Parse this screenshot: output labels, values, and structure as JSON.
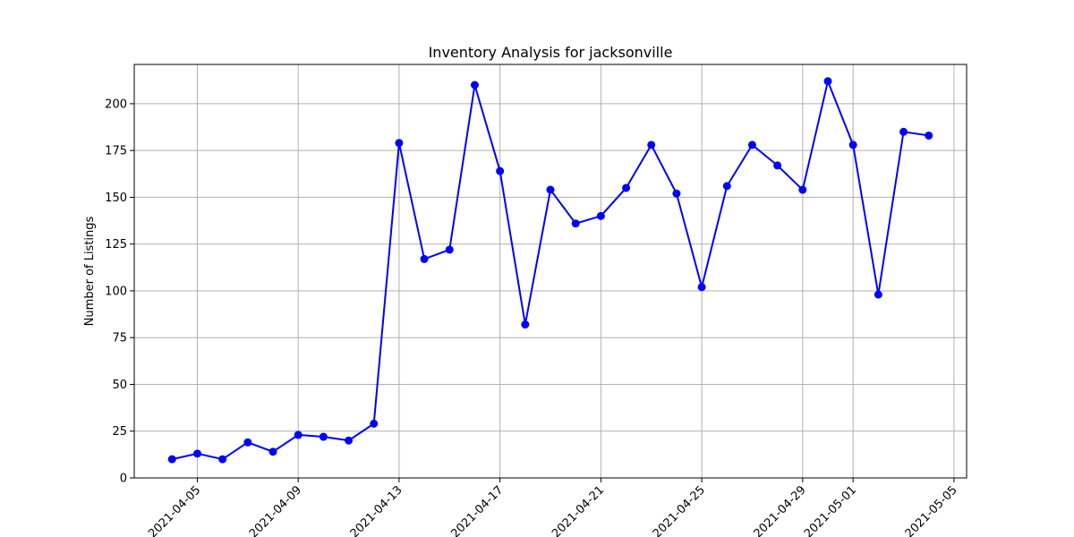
{
  "chart_data": {
    "type": "line",
    "title": "Inventory Analysis for jacksonville",
    "xlabel": "",
    "ylabel": "Number of Listings",
    "color": "#0000ff",
    "grid": true,
    "ylim": [
      0,
      221
    ],
    "xlim": [
      "2021-04-02.5",
      "2021-05-05.5"
    ],
    "yticks": [
      0,
      25,
      50,
      75,
      100,
      125,
      150,
      175,
      200
    ],
    "xticks": [
      "2021-04-05",
      "2021-04-09",
      "2021-04-13",
      "2021-04-17",
      "2021-04-21",
      "2021-04-25",
      "2021-04-29",
      "2021-05-01",
      "2021-05-05"
    ],
    "x": [
      "2021-04-04",
      "2021-04-05",
      "2021-04-06",
      "2021-04-07",
      "2021-04-08",
      "2021-04-09",
      "2021-04-10",
      "2021-04-11",
      "2021-04-12",
      "2021-04-13",
      "2021-04-14",
      "2021-04-15",
      "2021-04-16",
      "2021-04-17",
      "2021-04-18",
      "2021-04-19",
      "2021-04-20",
      "2021-04-21",
      "2021-04-22",
      "2021-04-23",
      "2021-04-24",
      "2021-04-25",
      "2021-04-26",
      "2021-04-27",
      "2021-04-28",
      "2021-04-29",
      "2021-04-30",
      "2021-05-01",
      "2021-05-02",
      "2021-05-03",
      "2021-05-04"
    ],
    "values": [
      10,
      13,
      10,
      19,
      14,
      23,
      22,
      20,
      29,
      179,
      117,
      122,
      210,
      164,
      82,
      154,
      136,
      140,
      155,
      178,
      152,
      102,
      156,
      178,
      167,
      154,
      212,
      178,
      98,
      185,
      183
    ]
  }
}
